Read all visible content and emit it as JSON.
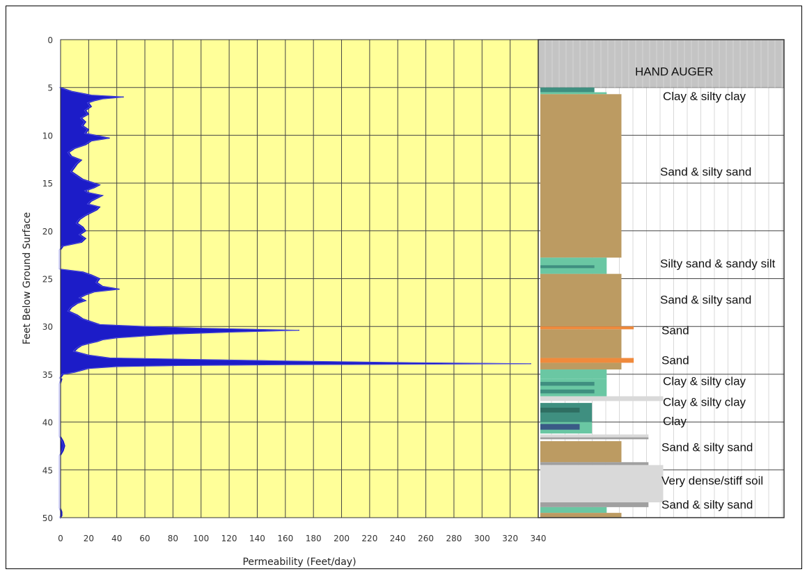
{
  "chart_data": {
    "type": "area",
    "xlabel": "Permeability (Feet/day)",
    "ylabel": "Feet Below Ground Surface",
    "xlim": [
      0,
      340
    ],
    "ylim": [
      0,
      50
    ],
    "y_inverted": true,
    "x_ticks": [
      "0",
      "20",
      "40",
      "60",
      "80",
      "100",
      "120",
      "140",
      "160",
      "180",
      "200",
      "220",
      "240",
      "260",
      "280",
      "300",
      "320",
      "340"
    ],
    "y_ticks": [
      "0",
      "5",
      "10",
      "15",
      "20",
      "25",
      "30",
      "35",
      "40",
      "45",
      "50"
    ],
    "grid": true,
    "plot_background": "#ffff99",
    "series_color": "#1c1cc8",
    "series": [
      {
        "depth": [
          5.0,
          5.4,
          5.8,
          6.0,
          6.2,
          6.4,
          6.6,
          7.0,
          7.4,
          7.8,
          8.2,
          8.6,
          9.0,
          9.4,
          9.8,
          10.0,
          10.3,
          10.6,
          11.0,
          11.4,
          11.8,
          12.2,
          12.6,
          13.0,
          13.4,
          13.8,
          14.2,
          14.6,
          14.9,
          15.2,
          15.5,
          15.8,
          16.0,
          16.3,
          16.6,
          16.9,
          17.2,
          17.5,
          17.8,
          18.1,
          18.4,
          18.8,
          19.2,
          19.6,
          20.0,
          20.4,
          20.8,
          21.2,
          21.6,
          22.0,
          22.5,
          23.0,
          23.5,
          24.0,
          24.3,
          24.6,
          25.0,
          25.4,
          25.8,
          26.1,
          26.4,
          26.7,
          27.0,
          27.3,
          27.6,
          28.0,
          28.4,
          28.8,
          29.2,
          29.5,
          29.8,
          30.0,
          30.2,
          30.4,
          30.6,
          30.8,
          31.0,
          31.2,
          31.4,
          31.6,
          31.8,
          32.0,
          32.3,
          32.6,
          33.0,
          33.3,
          33.6,
          33.8,
          33.9,
          34.0,
          34.1,
          34.2,
          34.4,
          34.8,
          35.0,
          35.4,
          35.5,
          36.0,
          40.0,
          41.5,
          42.0,
          42.5,
          43.0,
          43.5,
          44.0,
          49.0,
          49.4,
          49.8,
          50.0
        ],
        "permeability": [
          0,
          8,
          22,
          45,
          30,
          24,
          20,
          22,
          18,
          20,
          15,
          18,
          16,
          20,
          18,
          25,
          35,
          22,
          18,
          10,
          6,
          8,
          15,
          12,
          10,
          8,
          12,
          16,
          22,
          28,
          24,
          18,
          20,
          30,
          26,
          22,
          20,
          28,
          26,
          22,
          18,
          14,
          12,
          16,
          18,
          14,
          18,
          15,
          2,
          0,
          0,
          0,
          0,
          0,
          16,
          22,
          28,
          26,
          30,
          42,
          24,
          18,
          14,
          18,
          12,
          8,
          6,
          12,
          16,
          22,
          28,
          60,
          102,
          170,
          120,
          80,
          60,
          40,
          30,
          26,
          20,
          15,
          12,
          10,
          20,
          35,
          155,
          250,
          335,
          160,
          80,
          40,
          20,
          10,
          2,
          0,
          1,
          0,
          0,
          0,
          2,
          3,
          2,
          0,
          0,
          0,
          1,
          1,
          0
        ]
      }
    ],
    "soil_log": [
      {
        "top": 0,
        "bottom": 5,
        "label": "HAND AUGER"
      },
      {
        "top": 5,
        "bottom": 6.5,
        "label": "Clay & silty clay"
      },
      {
        "top": 6.5,
        "bottom": 22.8,
        "label": "Sand & silty sand"
      },
      {
        "top": 22.8,
        "bottom": 25.5,
        "label": "Silty sand & sandy silt"
      },
      {
        "top": 25.5,
        "bottom": 30.5,
        "label": "Sand & silty sand"
      },
      {
        "top": 30.5,
        "bottom": 31.5,
        "label": "Sand"
      },
      {
        "top": 31.5,
        "bottom": 35.0,
        "label": "Sand"
      },
      {
        "top": 35.0,
        "bottom": 37.5,
        "label": "Clay & silty clay"
      },
      {
        "top": 37.5,
        "bottom": 39.5,
        "label": "Clay & silty clay"
      },
      {
        "top": 39.5,
        "bottom": 41.8,
        "label": "Clay"
      },
      {
        "top": 41.8,
        "bottom": 44.5,
        "label": "Sand & silty sand"
      },
      {
        "top": 44.5,
        "bottom": 48.0,
        "label": "Very dense/stiff soil"
      },
      {
        "top": 48.0,
        "bottom": 50.0,
        "label": "Sand & silty sand"
      }
    ]
  }
}
